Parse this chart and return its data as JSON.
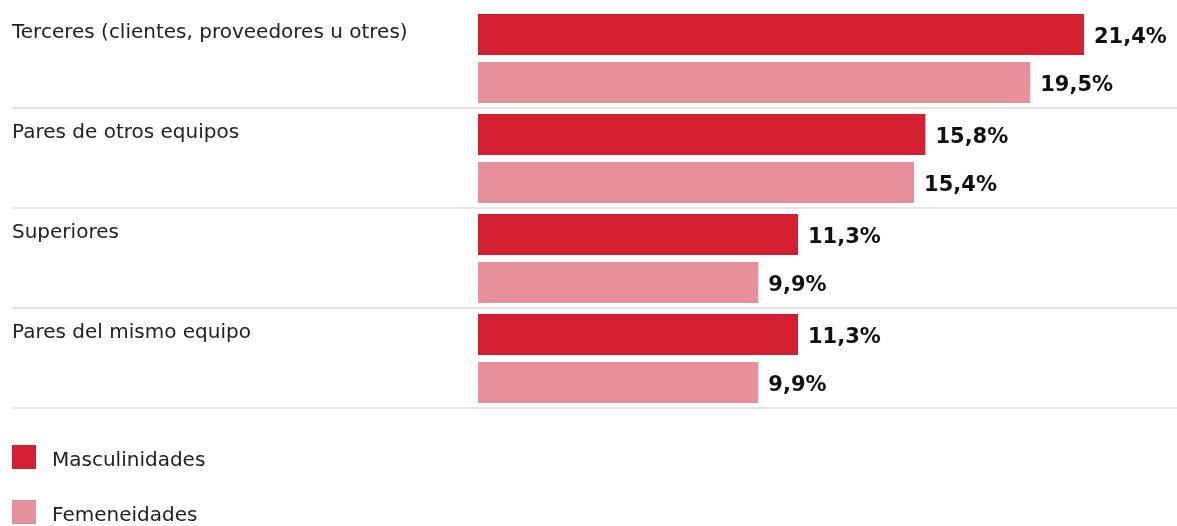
{
  "chart_data": {
    "type": "bar",
    "orientation": "horizontal",
    "categories": [
      "Terceres (clientes, proveedores u otres)",
      "Pares de otros equipos",
      "Superiores",
      "Pares del mismo equipo"
    ],
    "series": [
      {
        "name": "Masculinidades",
        "color": "#d41f30",
        "values": [
          21.4,
          15.8,
          11.3,
          11.3
        ],
        "value_labels": [
          "21,4%",
          "15,8%",
          "11,3%",
          "11,3%"
        ]
      },
      {
        "name": "Femeneidades",
        "color": "#e8909a",
        "values": [
          19.5,
          15.4,
          9.9,
          9.9
        ],
        "value_labels": [
          "19,5%",
          "15,4%",
          "9,9%",
          "9,9%"
        ]
      }
    ],
    "legend": "bottom left"
  }
}
